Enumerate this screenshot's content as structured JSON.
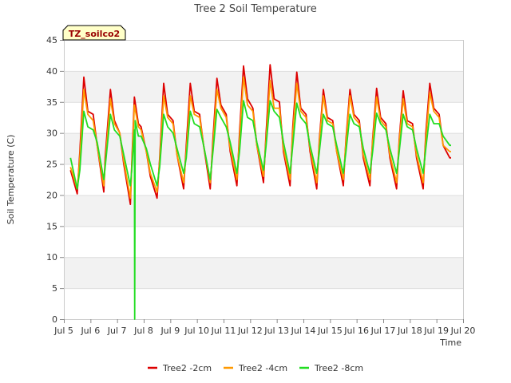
{
  "chart_data": {
    "type": "line",
    "title": "Tree 2 Soil Temperature",
    "xlabel": "Time",
    "ylabel": "Soil Temperature (C)",
    "ylim": [
      0,
      45
    ],
    "yticks": [
      0,
      5,
      10,
      15,
      20,
      25,
      30,
      35,
      40,
      45
    ],
    "xlim": [
      5,
      20
    ],
    "xticks": [
      {
        "v": 5,
        "label": "Jul 5"
      },
      {
        "v": 6,
        "label": "Jul 6"
      },
      {
        "v": 7,
        "label": "Jul 7"
      },
      {
        "v": 8,
        "label": "Jul 8"
      },
      {
        "v": 9,
        "label": "Jul 9"
      },
      {
        "v": 10,
        "label": "Jul 10"
      },
      {
        "v": 11,
        "label": "Jul 11"
      },
      {
        "v": 12,
        "label": "Jul 12"
      },
      {
        "v": 13,
        "label": "Jul 13"
      },
      {
        "v": 14,
        "label": "Jul 14"
      },
      {
        "v": 15,
        "label": "Jul 15"
      },
      {
        "v": 16,
        "label": "Jul 16"
      },
      {
        "v": 17,
        "label": "Jul 17"
      },
      {
        "v": 18,
        "label": "Jul 18"
      },
      {
        "v": 19,
        "label": "Jul 19"
      },
      {
        "v": 20,
        "label": "Jul 20"
      }
    ],
    "annotation": "TZ_soilco2",
    "legend_position": "bottom-center",
    "series": [
      {
        "name": "Tree2 -2cm",
        "color": "#dd0000",
        "x": [
          5.25,
          5.5,
          5.6,
          5.75,
          5.9,
          6.1,
          6.25,
          6.5,
          6.55,
          6.75,
          6.9,
          7.1,
          7.25,
          7.5,
          7.55,
          7.65,
          7.8,
          7.9,
          8.1,
          8.25,
          8.5,
          8.6,
          8.75,
          8.9,
          9.1,
          9.25,
          9.5,
          9.6,
          9.75,
          9.9,
          10.1,
          10.25,
          10.5,
          10.6,
          10.75,
          10.9,
          11.1,
          11.25,
          11.5,
          11.6,
          11.75,
          11.9,
          12.1,
          12.25,
          12.5,
          12.6,
          12.75,
          12.9,
          13.1,
          13.25,
          13.5,
          13.6,
          13.75,
          13.9,
          14.1,
          14.25,
          14.5,
          14.6,
          14.75,
          14.9,
          15.1,
          15.25,
          15.5,
          15.6,
          15.75,
          15.9,
          16.1,
          16.25,
          16.5,
          16.6,
          16.75,
          16.9,
          17.1,
          17.25,
          17.5,
          17.6,
          17.75,
          17.9,
          18.1,
          18.25,
          18.5,
          18.6,
          18.75,
          18.9,
          19.1,
          19.25,
          19.5,
          19.55
        ],
        "y": [
          24,
          20.2,
          27,
          39,
          33.5,
          33,
          28,
          20.5,
          26,
          37,
          32,
          30,
          25,
          18.5,
          25,
          35.8,
          31.5,
          31,
          27,
          23,
          19.5,
          26,
          38,
          33,
          32,
          26.5,
          21,
          28,
          38,
          33.5,
          33,
          28,
          21,
          29,
          38.8,
          34.5,
          33,
          27,
          21.5,
          30,
          40.8,
          35.5,
          34,
          28,
          22,
          30,
          41,
          35.5,
          35,
          27,
          21.5,
          31,
          39.8,
          34,
          33,
          27,
          21,
          29,
          37,
          32.5,
          32,
          27,
          21.5,
          29,
          37,
          33,
          32,
          26,
          21.5,
          29,
          37.2,
          32.5,
          31.5,
          26,
          21,
          29,
          36.8,
          32,
          31.5,
          26,
          21,
          30,
          38,
          34,
          33,
          28,
          26,
          26
        ]
      },
      {
        "name": "Tree2 -4cm",
        "color": "#ff9900",
        "x": [
          5.25,
          5.5,
          5.6,
          5.75,
          5.9,
          6.1,
          6.25,
          6.5,
          6.55,
          6.75,
          6.9,
          7.1,
          7.25,
          7.5,
          7.55,
          7.65,
          7.8,
          7.9,
          8.1,
          8.25,
          8.5,
          8.6,
          8.75,
          8.9,
          9.1,
          9.25,
          9.5,
          9.6,
          9.75,
          9.9,
          10.1,
          10.25,
          10.5,
          10.6,
          10.75,
          10.9,
          11.1,
          11.25,
          11.5,
          11.6,
          11.75,
          11.9,
          12.1,
          12.25,
          12.5,
          12.6,
          12.75,
          12.9,
          13.1,
          13.25,
          13.5,
          13.6,
          13.75,
          13.9,
          14.1,
          14.25,
          14.5,
          14.6,
          14.75,
          14.9,
          15.1,
          15.25,
          15.5,
          15.6,
          15.75,
          15.9,
          16.1,
          16.25,
          16.5,
          16.6,
          16.75,
          16.9,
          17.1,
          17.25,
          17.5,
          17.6,
          17.75,
          17.9,
          18.1,
          18.25,
          18.5,
          18.6,
          18.75,
          18.9,
          19.1,
          19.25,
          19.5,
          19.55
        ],
        "y": [
          24.5,
          21,
          26,
          37,
          33,
          32,
          28,
          21.5,
          25,
          35.5,
          31.5,
          30,
          25.5,
          19.5,
          24.5,
          34.5,
          31,
          30.5,
          27,
          23.5,
          20.5,
          25.5,
          36,
          32.5,
          31.5,
          26.5,
          22,
          27,
          36,
          33,
          32.5,
          28,
          22,
          28,
          37,
          34,
          32.5,
          27.5,
          22.5,
          29,
          39,
          34.5,
          33.5,
          28,
          23,
          29,
          38.5,
          34,
          34,
          27.5,
          22.5,
          30,
          38,
          33.5,
          32.5,
          27.5,
          22,
          28.5,
          36,
          32,
          31.5,
          27,
          22.5,
          28.5,
          36,
          32.5,
          31.5,
          26.5,
          22.5,
          28.5,
          35.8,
          32,
          31,
          26.5,
          22,
          28.5,
          35.5,
          31.5,
          31,
          26.5,
          22,
          29,
          36.5,
          33.5,
          32.5,
          28,
          27,
          27
        ]
      },
      {
        "name": "Tree2 -8cm",
        "color": "#22dd22",
        "x": [
          5.25,
          5.5,
          5.6,
          5.75,
          5.9,
          6.1,
          6.25,
          6.5,
          6.55,
          6.75,
          6.9,
          7.1,
          7.25,
          7.5,
          7.55,
          7.65,
          7.66,
          7.68,
          7.8,
          7.9,
          8.1,
          8.25,
          8.5,
          8.6,
          8.75,
          8.9,
          9.1,
          9.25,
          9.5,
          9.6,
          9.75,
          9.9,
          10.1,
          10.25,
          10.5,
          10.6,
          10.75,
          10.9,
          11.1,
          11.25,
          11.5,
          11.6,
          11.75,
          11.9,
          12.1,
          12.25,
          12.5,
          12.6,
          12.75,
          12.9,
          13.1,
          13.25,
          13.5,
          13.6,
          13.75,
          13.9,
          14.1,
          14.25,
          14.5,
          14.6,
          14.75,
          14.9,
          15.1,
          15.25,
          15.5,
          15.6,
          15.75,
          15.9,
          16.1,
          16.25,
          16.5,
          16.6,
          16.75,
          16.9,
          17.1,
          17.25,
          17.5,
          17.6,
          17.75,
          17.9,
          18.1,
          18.25,
          18.5,
          18.6,
          18.75,
          18.9,
          19.1,
          19.25,
          19.5,
          19.55
        ],
        "y": [
          26,
          21,
          24,
          33.5,
          31,
          30.5,
          28.5,
          22.5,
          24.5,
          33,
          30.5,
          29.5,
          26.5,
          21.5,
          24,
          30.5,
          0,
          32,
          29.5,
          29.5,
          27.5,
          25,
          21.5,
          24.5,
          33,
          31,
          30,
          27.5,
          23.5,
          26,
          33.5,
          31.5,
          31,
          28,
          22.5,
          27,
          33.8,
          32.5,
          31,
          28.5,
          23.5,
          27,
          35.2,
          32.5,
          32,
          28.5,
          24,
          28,
          35.2,
          33.5,
          32.5,
          28.5,
          23.5,
          28,
          34.8,
          32.5,
          31.5,
          28,
          23.5,
          27,
          33,
          31.5,
          31,
          28,
          23.5,
          27,
          33,
          31.5,
          31,
          27.5,
          23.5,
          27,
          33.2,
          31.5,
          30.5,
          27.5,
          23.5,
          27,
          33,
          31,
          30.5,
          27.5,
          23.5,
          27.5,
          33,
          31.5,
          31.5,
          29.5,
          28,
          28
        ]
      }
    ]
  }
}
